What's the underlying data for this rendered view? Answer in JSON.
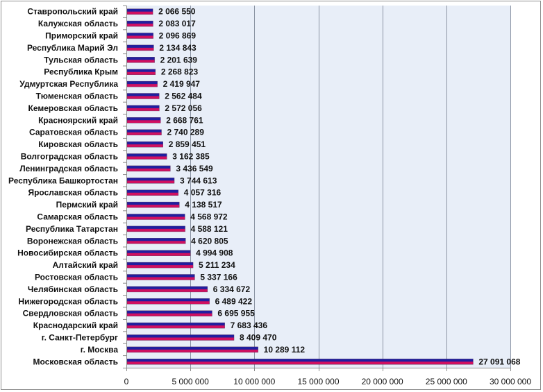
{
  "chart_data": {
    "type": "bar",
    "orientation": "horizontal",
    "title": "",
    "xlabel": "",
    "ylabel": "",
    "xlim": [
      0,
      30000000
    ],
    "grid": true,
    "legend": "none",
    "colors": {
      "bar_top": "#1f1fa0",
      "bar_bottom": "#d01060",
      "plot_background": "#e8eef8",
      "gridline": "#8a93a3"
    },
    "categories": [
      "Ставропольский край",
      "Калужская область",
      "Приморский край",
      "Республика Марий Эл",
      "Тульская область",
      "Республика Крым",
      "Удмуртская Республика",
      "Тюменская область",
      "Кемеровская область",
      "Красноярский край",
      "Саратовская область",
      "Кировская область",
      "Волгоградская область",
      "Ленинградская область",
      "Республика Башкортостан",
      "Ярославская область",
      "Пермский край",
      "Самарская область",
      "Республика Татарстан",
      "Воронежская область",
      "Новосибирская область",
      "Алтайский край",
      "Ростовская область",
      "Челябинская область",
      "Нижегородская область",
      "Свердловская область",
      "Краснодарский край",
      "г. Санкт-Петербург",
      "г. Москва",
      "Московская область"
    ],
    "values": [
      2066550,
      2083017,
      2096869,
      2134843,
      2201639,
      2268823,
      2419947,
      2562484,
      2572056,
      2668761,
      2740289,
      2859451,
      3162385,
      3436549,
      3744613,
      4057316,
      4138517,
      4568972,
      4588121,
      4620805,
      4994908,
      5211234,
      5337166,
      6334672,
      6489422,
      6695955,
      7683436,
      8409470,
      10289112,
      27091068
    ],
    "value_labels": [
      "2 066 550",
      "2 083 017",
      "2 096 869",
      "2 134 843",
      "2 201 639",
      "2 268 823",
      "2 419 947",
      "2 562 484",
      "2 572 056",
      "2 668 761",
      "2 740 289",
      "2 859 451",
      "3 162 385",
      "3 436 549",
      "3 744 613",
      "4 057 316",
      "4 138 517",
      "4 568 972",
      "4 588 121",
      "4 620 805",
      "4 994 908",
      "5 211 234",
      "5 337 166",
      "6 334 672",
      "6 489 422",
      "6 695 955",
      "7 683 436",
      "8 409 470",
      "10 289 112",
      "27 091 068"
    ],
    "x_ticks": [
      0,
      5000000,
      10000000,
      15000000,
      20000000,
      25000000,
      30000000
    ],
    "x_tick_labels": [
      "0",
      "5 000 000",
      "10 000 000",
      "15 000 000",
      "20 000 000",
      "25 000 000",
      "30 000 000"
    ]
  }
}
